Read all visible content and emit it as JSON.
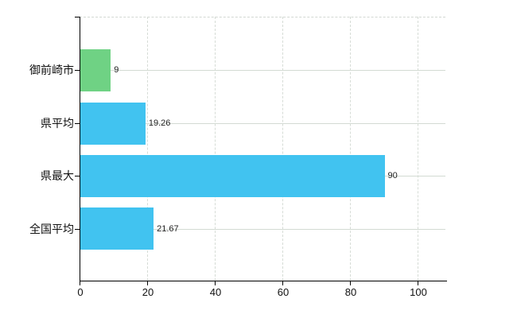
{
  "chart_data": {
    "type": "bar",
    "orientation": "horizontal",
    "title": "",
    "xlabel": "",
    "ylabel": "",
    "categories": [
      "御前崎市",
      "県平均",
      "県最大",
      "全国平均"
    ],
    "values": [
      9,
      19.26,
      90,
      21.67
    ],
    "value_labels": [
      "9",
      "19.26",
      "90",
      "21.67"
    ],
    "bar_colors": [
      "#6fd284",
      "#41c3f0",
      "#41c3f0",
      "#41c3f0"
    ],
    "x_ticks": [
      0,
      20,
      40,
      60,
      80,
      100
    ],
    "x_tick_labels": [
      "0",
      "20",
      "40",
      "60",
      "80",
      "100"
    ],
    "xlim": [
      0,
      108.7
    ],
    "grid": true,
    "legend": false,
    "background_color": "#ffffff",
    "axis_color": "#000000",
    "gridline_color": "#d3dad3",
    "label_color": "#111111"
  }
}
